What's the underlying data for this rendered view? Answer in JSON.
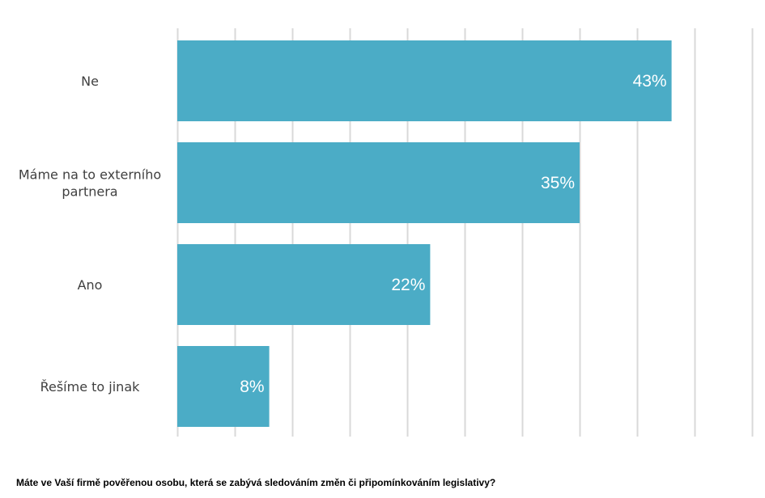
{
  "caption": "Máte ve Vaší firmě pověřenou osobu, která se zabývá sledováním změn či připomínkováním legislativy?",
  "chart_data": {
    "type": "bar",
    "orientation": "horizontal",
    "categories": [
      [
        "Ne"
      ],
      [
        "Máme na to externího",
        "partnera"
      ],
      [
        "Ano"
      ],
      [
        "Řešíme to jinak"
      ]
    ],
    "values": [
      43,
      35,
      22,
      8
    ],
    "value_labels": [
      "43%",
      "35%",
      "22%",
      "8%"
    ],
    "xlim": [
      0,
      50
    ],
    "grid_step": 5,
    "grid": true,
    "bar_color": "#4bacc6",
    "grid_color": "#d9d9d9",
    "label_color": "#ffffff"
  }
}
